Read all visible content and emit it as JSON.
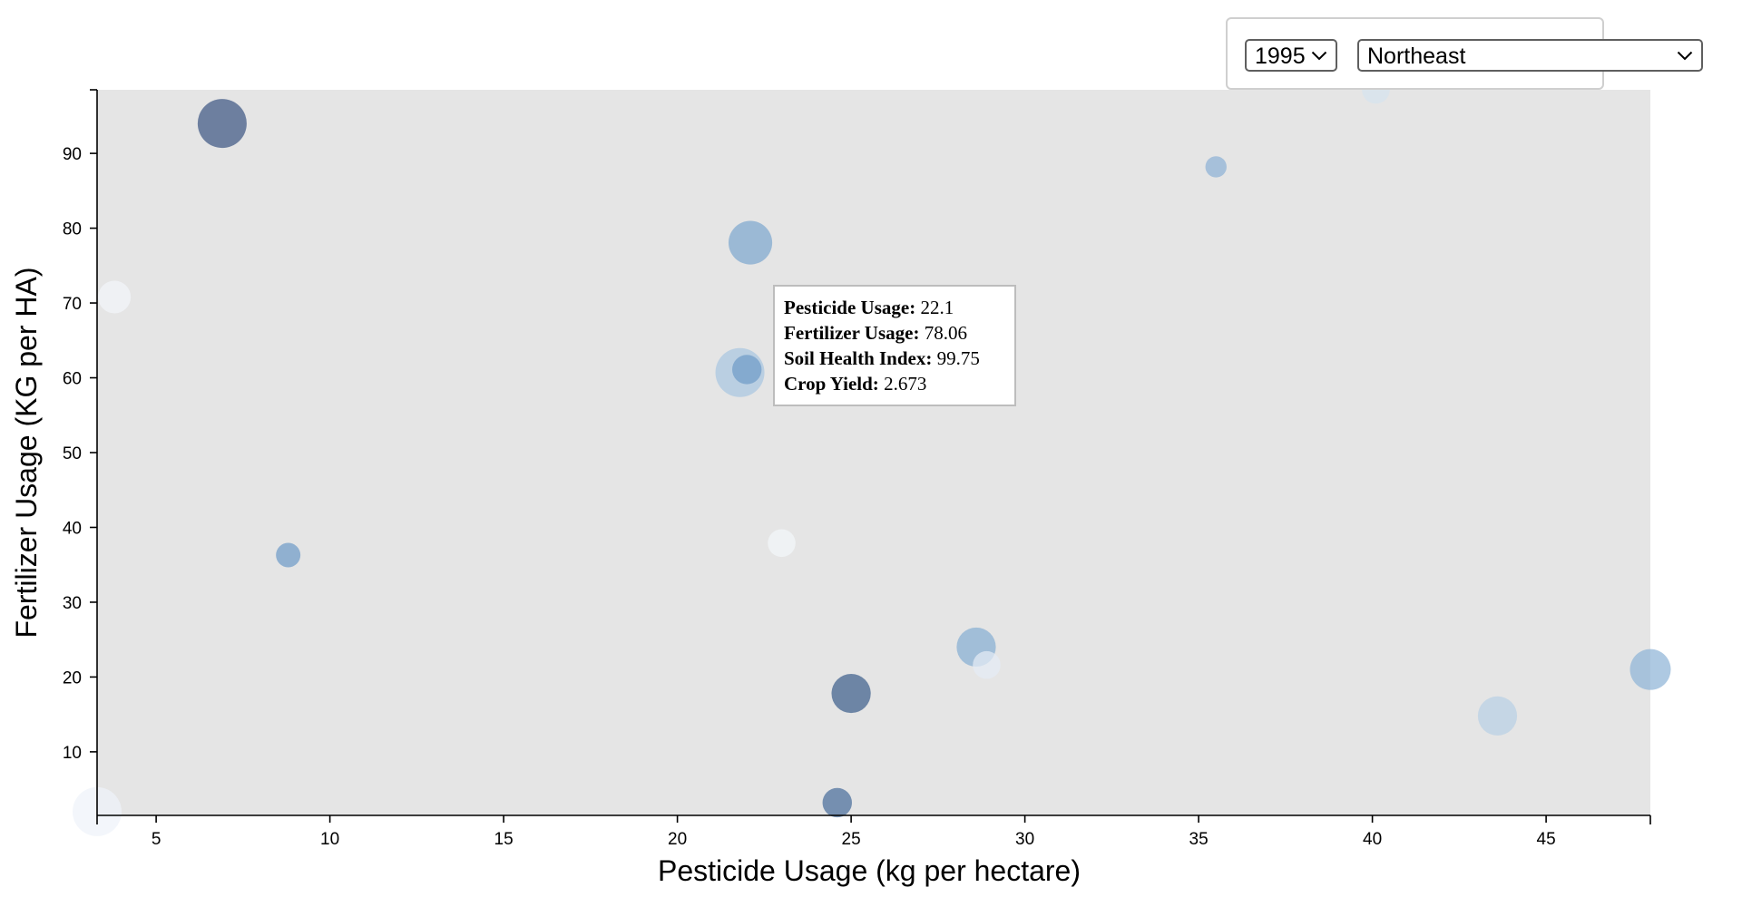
{
  "controls": {
    "year": {
      "selected": "1995"
    },
    "region": {
      "selected": "Northeast"
    }
  },
  "tooltip": {
    "rows": [
      {
        "label": "Pesticide Usage:",
        "value": "22.1"
      },
      {
        "label": "Fertilizer Usage:",
        "value": "78.06"
      },
      {
        "label": "Soil Health Index:",
        "value": "99.75"
      },
      {
        "label": "Crop Yield:",
        "value": "2.673"
      }
    ]
  },
  "chart_data": {
    "type": "scatter",
    "xlabel": "Pesticide Usage (kg per hectare)",
    "ylabel": "Fertilizer Usage (KG per HA)",
    "xlim": [
      3.3,
      48
    ],
    "ylim": [
      1.5,
      98.5
    ],
    "xticks": [
      5,
      10,
      15,
      20,
      25,
      30,
      35,
      40,
      45
    ],
    "yticks": [
      10,
      20,
      30,
      40,
      50,
      60,
      70,
      80,
      90
    ],
    "grid": false,
    "size_encoding": "Crop Yield",
    "color_encoding": "Soil Health Index",
    "points": [
      {
        "x": 6.9,
        "y": 94.0,
        "size": 3.0,
        "color": "#3f5783"
      },
      {
        "x": 3.8,
        "y": 70.8,
        "size": 2.0,
        "color": "#f2f5fa"
      },
      {
        "x": 8.8,
        "y": 36.3,
        "size": 1.5,
        "color": "#6f9bc7"
      },
      {
        "x": 3.3,
        "y": 2.0,
        "size": 3.0,
        "color": "#eff3f9"
      },
      {
        "x": 22.1,
        "y": 78.06,
        "size": 2.673,
        "color": "#7ea7cf"
      },
      {
        "x": 21.8,
        "y": 60.7,
        "size": 3.0,
        "color": "#a9c6e0"
      },
      {
        "x": 22.0,
        "y": 61.1,
        "size": 1.8,
        "color": "#6f9bc7"
      },
      {
        "x": 23.0,
        "y": 37.9,
        "size": 1.7,
        "color": "#f3f6fa"
      },
      {
        "x": 25.0,
        "y": 17.8,
        "size": 2.4,
        "color": "#3f5f8c"
      },
      {
        "x": 24.6,
        "y": 3.2,
        "size": 1.8,
        "color": "#4a6d9b"
      },
      {
        "x": 28.6,
        "y": 24.0,
        "size": 2.4,
        "color": "#86aed3"
      },
      {
        "x": 28.9,
        "y": 21.6,
        "size": 1.7,
        "color": "#e4ecf5"
      },
      {
        "x": 35.5,
        "y": 88.2,
        "size": 1.3,
        "color": "#8db2d5"
      },
      {
        "x": 40.1,
        "y": 98.5,
        "size": 1.7,
        "color": "#d6e3ef"
      },
      {
        "x": 43.6,
        "y": 14.8,
        "size": 2.4,
        "color": "#b9d0e5"
      },
      {
        "x": 48.0,
        "y": 21.0,
        "size": 2.5,
        "color": "#8fb4d7"
      }
    ]
  }
}
